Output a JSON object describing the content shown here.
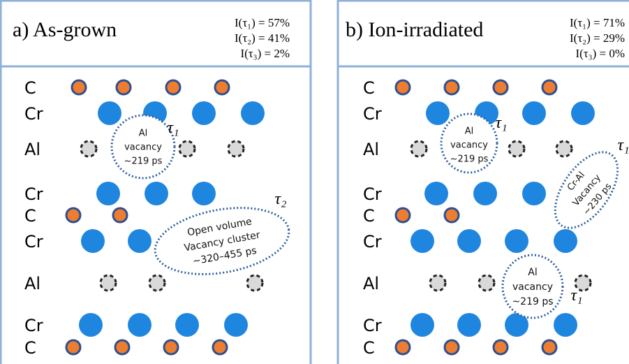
{
  "panels": [
    {
      "label": "a)",
      "title": "As-grown",
      "intensities": [
        "I(τ₁) = 57%",
        "I(τ₂) = 41%",
        "I(τ₃) = 2%"
      ],
      "rows": [
        "C",
        "Cr",
        "Al",
        "Cr",
        "C",
        "Cr",
        "Al",
        "Cr",
        "C"
      ],
      "bubbles": [
        {
          "lines": [
            "Al",
            "vacancy",
            "~219 ps"
          ],
          "tau": "τ₁"
        },
        {
          "lines": [
            "Open volume",
            "Vacancy cluster",
            "~320–455 ps"
          ],
          "tau": "τ₂"
        }
      ]
    },
    {
      "label": "b)",
      "title": "Ion-irradiated",
      "intensities": [
        "I(τ₁) = 71%",
        "I(τ₂) = 29%",
        "I(τ₃) = 0%"
      ],
      "rows": [
        "C",
        "Cr",
        "Al",
        "Cr",
        "C",
        "Cr",
        "Al",
        "Cr",
        "C"
      ],
      "bubbles": [
        {
          "lines": [
            "Al",
            "vacancy",
            "~219 ps"
          ],
          "tau": "τ₁"
        },
        {
          "lines": [
            "Cr-Al",
            "Vacancy",
            "~230 ps"
          ],
          "tau": "τ₁"
        },
        {
          "lines": [
            "Al",
            "vacancy",
            "~219 ps"
          ],
          "tau": "τ₁"
        }
      ]
    }
  ]
}
